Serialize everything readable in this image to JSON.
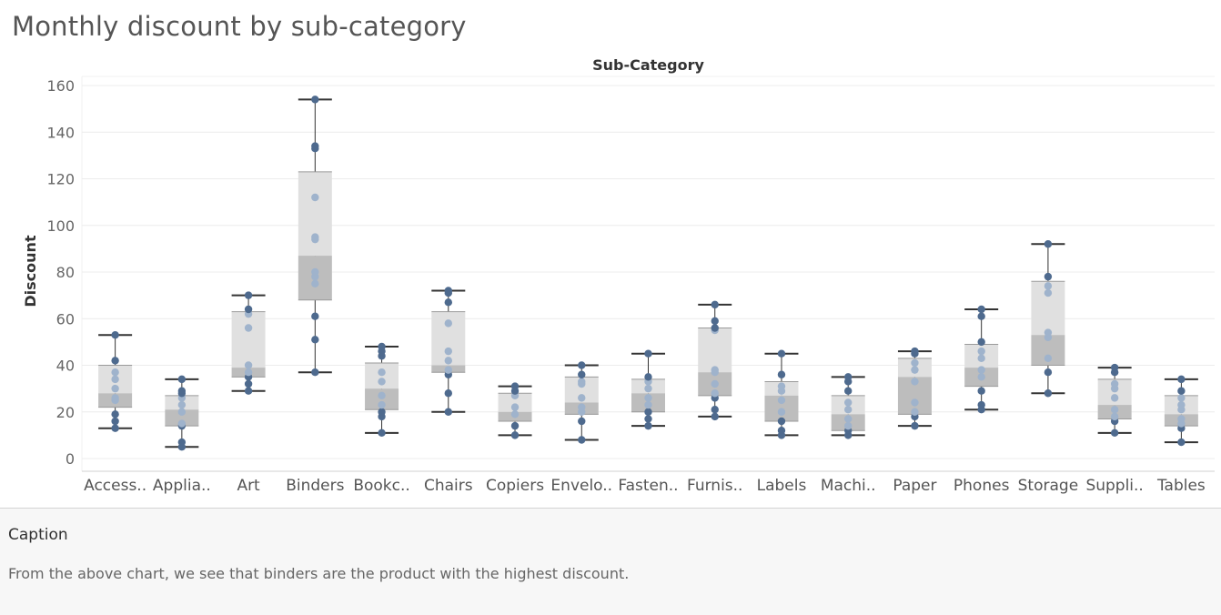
{
  "page": {
    "title": "Monthly discount by sub-category",
    "caption_label": "Caption",
    "caption_text": "From the above chart, we see that binders are the product with the highest discount."
  },
  "chart_data": {
    "type": "boxplot",
    "header_label": "Sub-Category",
    "ylabel": "Discount",
    "ylim": [
      0,
      160
    ],
    "yticks": [
      0,
      20,
      40,
      60,
      80,
      100,
      120,
      140,
      160
    ],
    "grid": true,
    "colors": {
      "point_dark": "#4e6a8e",
      "point_light": "#9fb3cc",
      "box_upper": "#e0e0e0",
      "box_lower": "#bdbdbd",
      "whisker": "#333333"
    },
    "categories": [
      {
        "label": "Access..",
        "min": 13,
        "q1": 22,
        "median": 28,
        "q3": 40,
        "max": 53,
        "points": [
          13,
          16,
          19,
          25,
          26,
          30,
          34,
          37,
          42,
          53
        ]
      },
      {
        "label": "Applia..",
        "min": 5,
        "q1": 14,
        "median": 21,
        "q3": 27,
        "max": 34,
        "points": [
          5,
          7,
          14,
          15,
          20,
          23,
          26,
          28,
          29,
          34
        ]
      },
      {
        "label": "Art",
        "min": 29,
        "q1": 35,
        "median": 39,
        "q3": 63,
        "max": 70,
        "points": [
          29,
          32,
          35,
          37,
          40,
          56,
          62,
          64,
          70
        ]
      },
      {
        "label": "Binders",
        "min": 37,
        "q1": 68,
        "median": 87,
        "q3": 123,
        "max": 154,
        "points": [
          37,
          51,
          61,
          75,
          78,
          80,
          94,
          95,
          112,
          133,
          134,
          154
        ]
      },
      {
        "label": "Bookc..",
        "min": 11,
        "q1": 21,
        "median": 30,
        "q3": 41,
        "max": 48,
        "points": [
          11,
          18,
          20,
          23,
          27,
          33,
          37,
          44,
          46,
          48
        ]
      },
      {
        "label": "Chairs",
        "min": 20,
        "q1": 37,
        "median": 40,
        "q3": 63,
        "max": 72,
        "points": [
          20,
          28,
          36,
          38,
          42,
          46,
          58,
          67,
          71,
          72
        ]
      },
      {
        "label": "Copiers",
        "min": 10,
        "q1": 16,
        "median": 20,
        "q3": 28,
        "max": 31,
        "points": [
          10,
          14,
          19,
          22,
          27,
          29,
          31
        ]
      },
      {
        "label": "Envelo..",
        "min": 8,
        "q1": 19,
        "median": 24,
        "q3": 35,
        "max": 40,
        "points": [
          8,
          16,
          20,
          22,
          26,
          32,
          33,
          36,
          40
        ]
      },
      {
        "label": "Fasten..",
        "min": 14,
        "q1": 20,
        "median": 28,
        "q3": 34,
        "max": 45,
        "points": [
          14,
          17,
          20,
          23,
          26,
          30,
          33,
          35,
          45
        ]
      },
      {
        "label": "Furnis..",
        "min": 18,
        "q1": 27,
        "median": 37,
        "q3": 56,
        "max": 66,
        "points": [
          18,
          21,
          26,
          28,
          32,
          37,
          38,
          55,
          56,
          59,
          66
        ]
      },
      {
        "label": "Labels",
        "min": 10,
        "q1": 16,
        "median": 27,
        "q3": 33,
        "max": 45,
        "points": [
          10,
          12,
          16,
          20,
          25,
          29,
          31,
          36,
          45
        ]
      },
      {
        "label": "Machi..",
        "min": 10,
        "q1": 12,
        "median": 19,
        "q3": 27,
        "max": 35,
        "points": [
          10,
          12,
          14,
          17,
          21,
          24,
          29,
          33,
          35
        ]
      },
      {
        "label": "Paper",
        "min": 14,
        "q1": 19,
        "median": 35,
        "q3": 43,
        "max": 46,
        "points": [
          14,
          18,
          20,
          24,
          33,
          38,
          41,
          45,
          46
        ]
      },
      {
        "label": "Phones",
        "min": 21,
        "q1": 31,
        "median": 39,
        "q3": 49,
        "max": 64,
        "points": [
          21,
          23,
          29,
          35,
          38,
          43,
          46,
          50,
          61,
          64
        ]
      },
      {
        "label": "Storage",
        "min": 28,
        "q1": 40,
        "median": 53,
        "q3": 76,
        "max": 92,
        "points": [
          28,
          37,
          43,
          52,
          54,
          71,
          74,
          78,
          92
        ]
      },
      {
        "label": "Suppli..",
        "min": 11,
        "q1": 17,
        "median": 23,
        "q3": 34,
        "max": 39,
        "points": [
          11,
          16,
          18,
          21,
          26,
          30,
          32,
          37,
          39
        ]
      },
      {
        "label": "Tables",
        "min": 7,
        "q1": 14,
        "median": 19,
        "q3": 27,
        "max": 34,
        "points": [
          7,
          13,
          15,
          17,
          21,
          23,
          26,
          29,
          34
        ]
      }
    ]
  }
}
